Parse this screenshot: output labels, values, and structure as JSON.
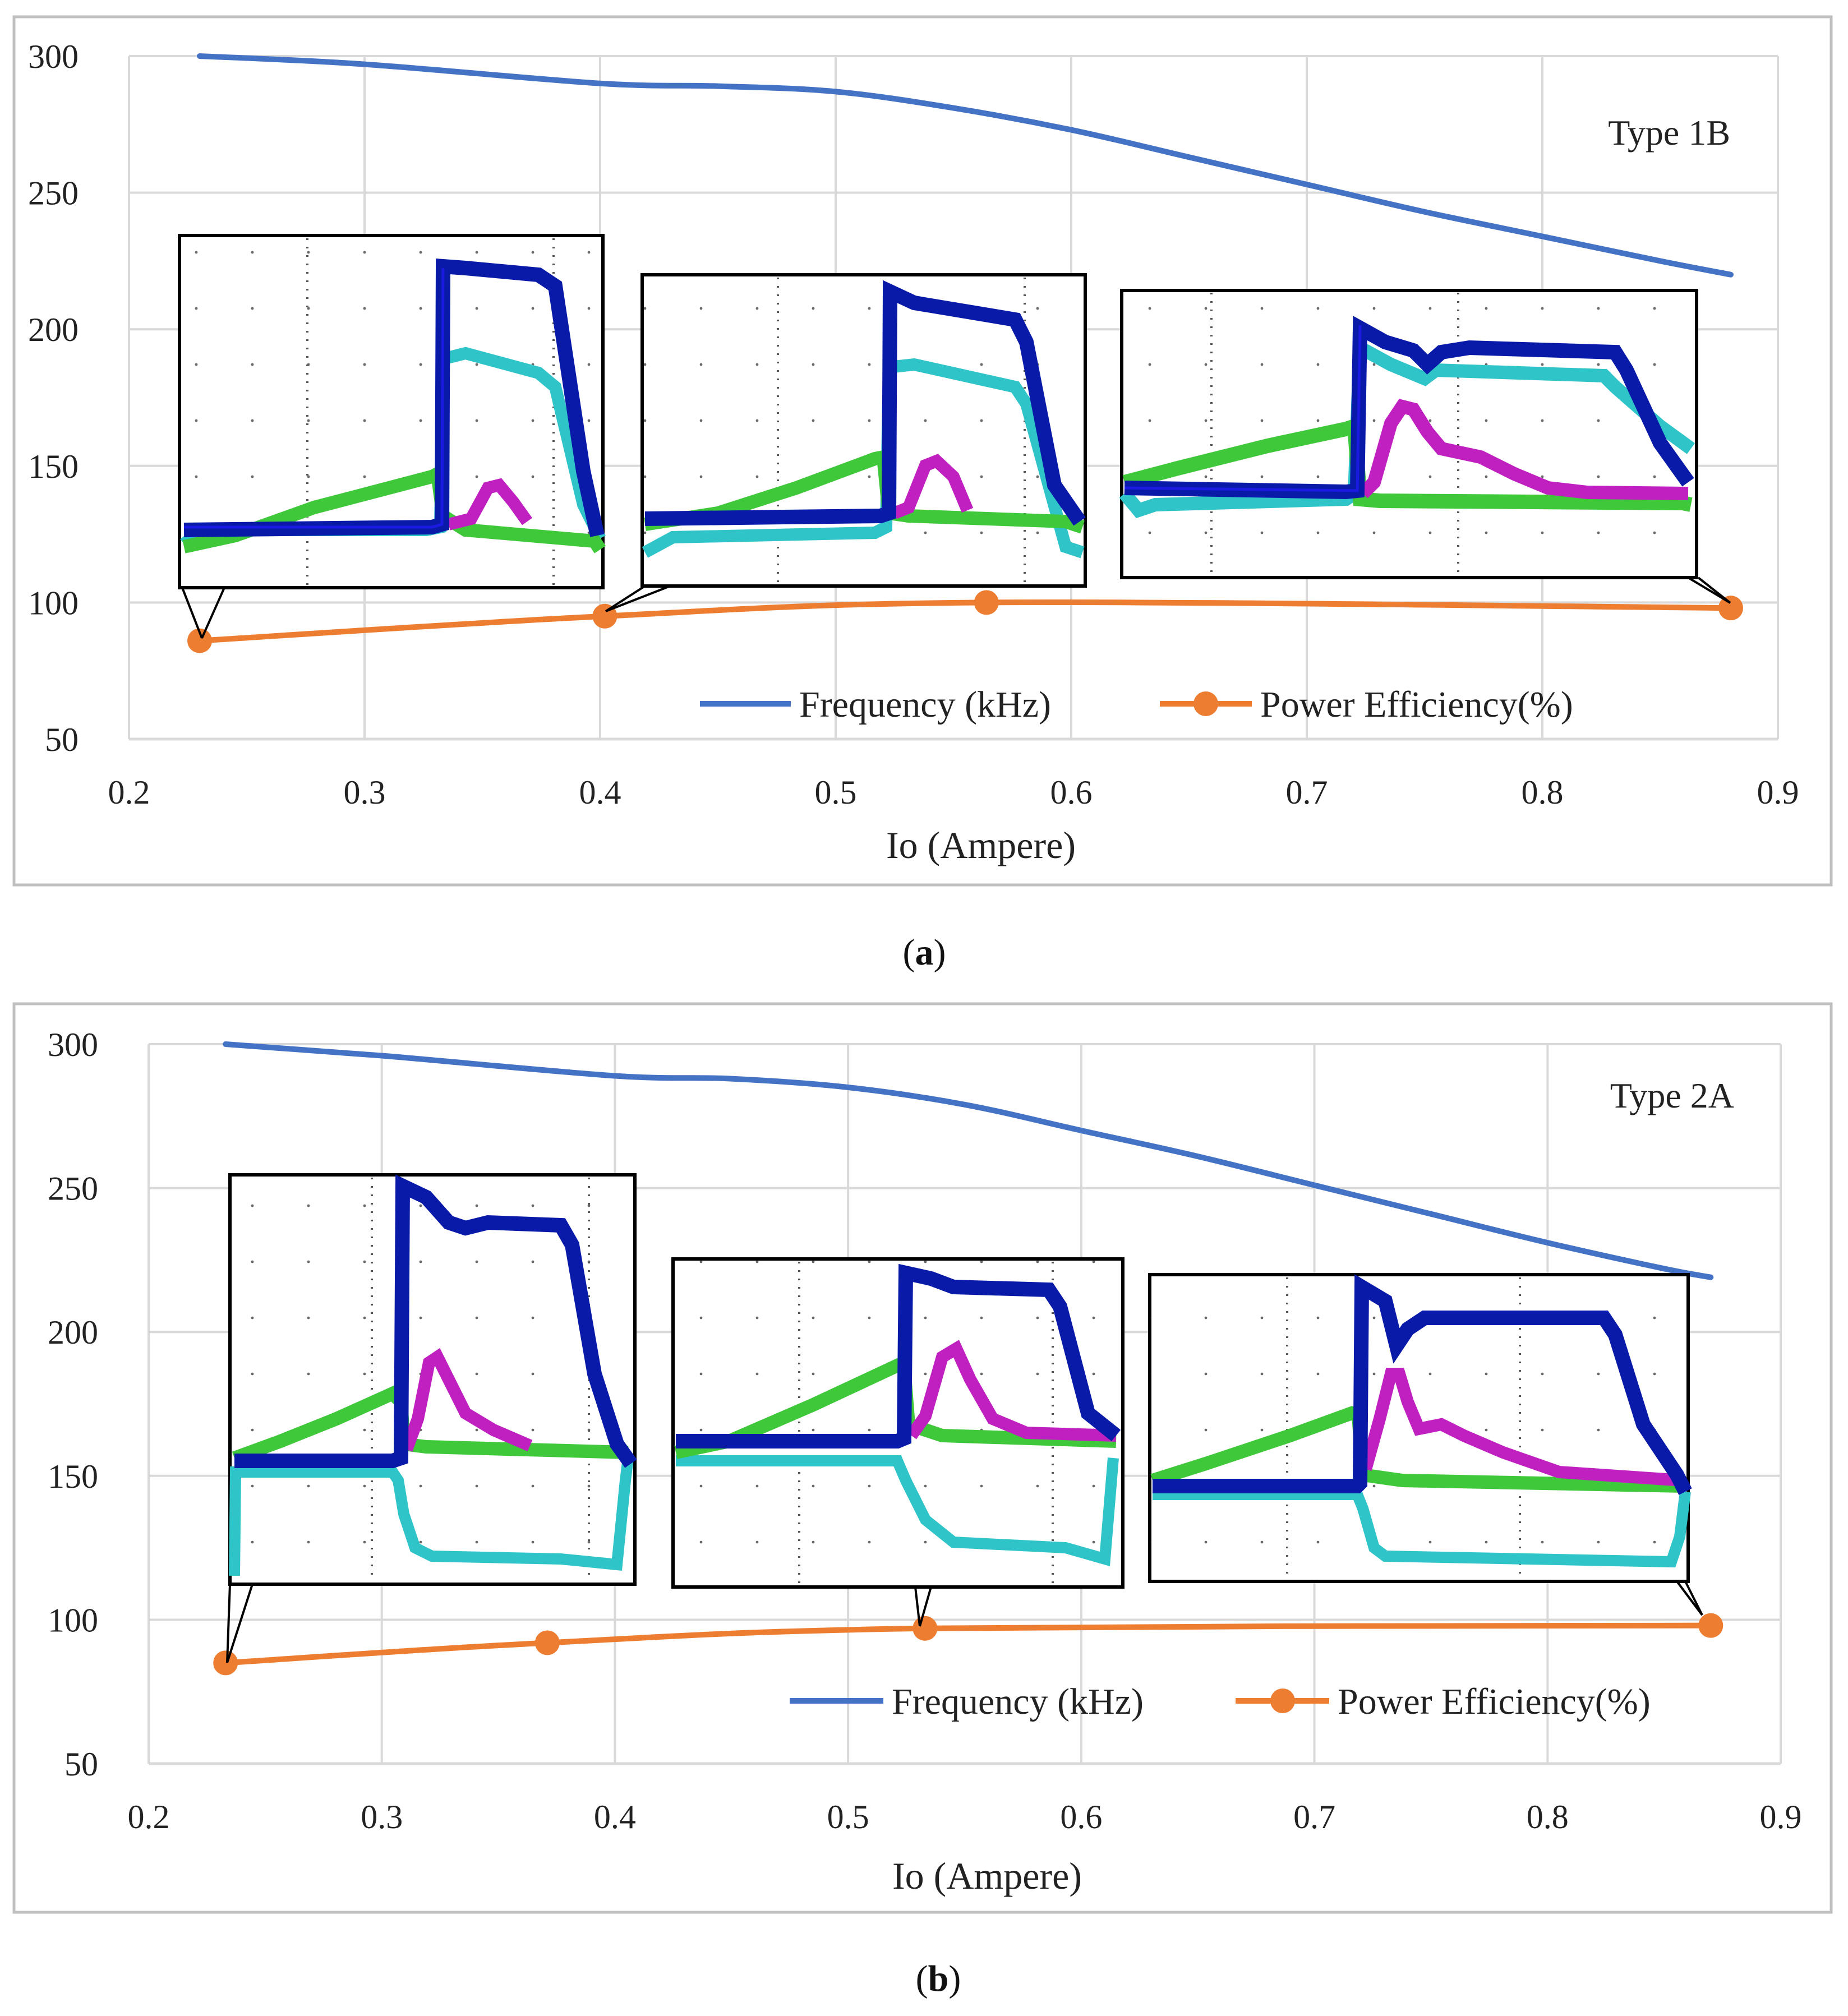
{
  "colors": {
    "frequency": "#4472C4",
    "efficiency": "#ED7D31",
    "grid": "#D9D9D9",
    "frame": "#BFBFBF",
    "scope_blue": "#0a1aa8",
    "scope_cyan": "#2ec4c8",
    "scope_green": "#3ec83a",
    "scope_magenta": "#c020c0"
  },
  "chart_data": [
    {
      "id": "a",
      "type": "line",
      "caption_label": "a",
      "annotation": "Type 1B",
      "xlabel": "Io (Ampere)",
      "ylabel": "",
      "xlim": [
        0.2,
        0.9
      ],
      "ylim": [
        50,
        300
      ],
      "xticks": [
        "0.2",
        "0.3",
        "0.4",
        "0.5",
        "0.6",
        "0.7",
        "0.8",
        "0.9"
      ],
      "yticks": [
        "50",
        "100",
        "150",
        "200",
        "250",
        "300"
      ],
      "grid": true,
      "legend_position": "bottom-right",
      "series": [
        {
          "name": "Frequency (kHz)",
          "markers": false,
          "x": [
            0.23,
            0.3,
            0.4,
            0.45,
            0.5,
            0.55,
            0.6,
            0.65,
            0.7,
            0.75,
            0.8,
            0.85,
            0.88
          ],
          "y": [
            300,
            297,
            290,
            289,
            287,
            281,
            273,
            263,
            253,
            243,
            234,
            225,
            220
          ]
        },
        {
          "name": "Power Efficiency(%)",
          "markers": true,
          "x": [
            0.23,
            0.402,
            0.564,
            0.88
          ],
          "y": [
            86,
            95,
            100,
            98
          ]
        }
      ],
      "insets": [
        "waveform-1",
        "waveform-2",
        "waveform-3"
      ]
    },
    {
      "id": "b",
      "type": "line",
      "caption_label": "b",
      "annotation": "Type 2A",
      "xlabel": "Io (Ampere)",
      "ylabel": "",
      "xlim": [
        0.2,
        0.9
      ],
      "ylim": [
        50,
        300
      ],
      "xticks": [
        "0.2",
        "0.3",
        "0.4",
        "0.5",
        "0.6",
        "0.7",
        "0.8",
        "0.9"
      ],
      "yticks": [
        "50",
        "100",
        "150",
        "200",
        "250",
        "300"
      ],
      "grid": true,
      "legend_position": "bottom-right",
      "series": [
        {
          "name": "Frequency (kHz)",
          "markers": false,
          "x": [
            0.233,
            0.3,
            0.4,
            0.45,
            0.5,
            0.55,
            0.6,
            0.65,
            0.7,
            0.75,
            0.8,
            0.85,
            0.87
          ],
          "y": [
            300,
            296,
            289,
            288,
            285,
            279,
            270,
            261,
            251,
            241,
            231,
            222,
            219
          ]
        },
        {
          "name": "Power Efficiency(%)",
          "markers": true,
          "x": [
            0.233,
            0.371,
            0.533,
            0.87
          ],
          "y": [
            85,
            92,
            97,
            98
          ]
        }
      ],
      "insets": [
        "waveform-4",
        "waveform-5",
        "waveform-6"
      ]
    }
  ]
}
